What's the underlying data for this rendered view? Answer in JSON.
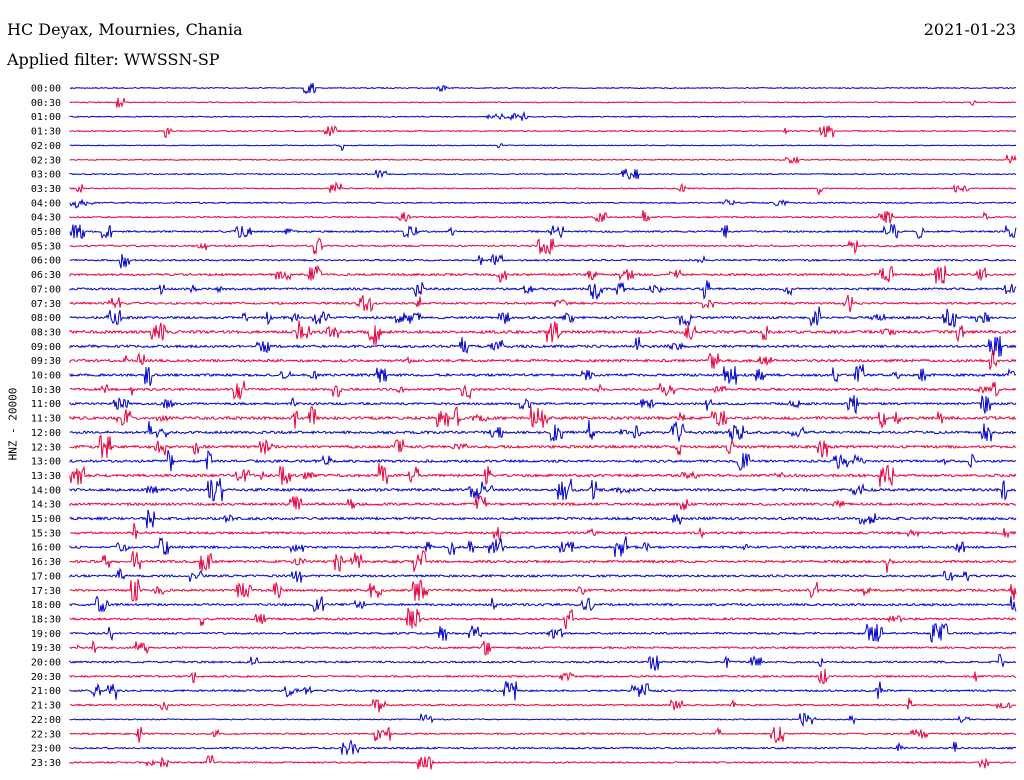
{
  "header": {
    "station": "HC Deyax, Mournies, Chania",
    "date": "2021-01-23",
    "filter_label": "Applied filter: WWSSN-SP"
  },
  "channel_label": "HNZ - 20000",
  "colors": {
    "blue_trace": "#0000cc",
    "red_trace": "#e8003c",
    "text": "#000000",
    "background": "#ffffff"
  },
  "chart_data": {
    "type": "line",
    "title": "",
    "ylabel": "HNZ - 20000",
    "xlabel": "",
    "line_interval_minutes": 30,
    "trace_colors_alternate": [
      "blue",
      "red"
    ],
    "rows": [
      {
        "time": "00:00",
        "activity": 0.12
      },
      {
        "time": "00:30",
        "activity": 0.12
      },
      {
        "time": "01:00",
        "activity": 0.12
      },
      {
        "time": "01:30",
        "activity": 0.15
      },
      {
        "time": "02:00",
        "activity": 0.08
      },
      {
        "time": "02:30",
        "activity": 0.12
      },
      {
        "time": "03:00",
        "activity": 0.15
      },
      {
        "time": "03:30",
        "activity": 0.18
      },
      {
        "time": "04:00",
        "activity": 0.2
      },
      {
        "time": "04:30",
        "activity": 0.25
      },
      {
        "time": "05:00",
        "activity": 0.35
      },
      {
        "time": "05:30",
        "activity": 0.35
      },
      {
        "time": "06:00",
        "activity": 0.35
      },
      {
        "time": "06:30",
        "activity": 0.5
      },
      {
        "time": "07:00",
        "activity": 0.5
      },
      {
        "time": "07:30",
        "activity": 0.45
      },
      {
        "time": "08:00",
        "activity": 0.55
      },
      {
        "time": "08:30",
        "activity": 0.75
      },
      {
        "time": "09:00",
        "activity": 0.6
      },
      {
        "time": "09:30",
        "activity": 0.65
      },
      {
        "time": "10:00",
        "activity": 0.6
      },
      {
        "time": "10:30",
        "activity": 0.55
      },
      {
        "time": "11:00",
        "activity": 0.5
      },
      {
        "time": "11:30",
        "activity": 0.75
      },
      {
        "time": "12:00",
        "activity": 0.65
      },
      {
        "time": "12:30",
        "activity": 0.7
      },
      {
        "time": "13:00",
        "activity": 0.6
      },
      {
        "time": "13:30",
        "activity": 0.65
      },
      {
        "time": "14:00",
        "activity": 0.7
      },
      {
        "time": "14:30",
        "activity": 0.6
      },
      {
        "time": "15:00",
        "activity": 0.65
      },
      {
        "time": "15:30",
        "activity": 0.55
      },
      {
        "time": "16:00",
        "activity": 0.55
      },
      {
        "time": "16:30",
        "activity": 0.6
      },
      {
        "time": "17:00",
        "activity": 0.5
      },
      {
        "time": "17:30",
        "activity": 0.55
      },
      {
        "time": "18:00",
        "activity": 0.55
      },
      {
        "time": "18:30",
        "activity": 0.5
      },
      {
        "time": "19:00",
        "activity": 0.45
      },
      {
        "time": "19:30",
        "activity": 0.4
      },
      {
        "time": "20:00",
        "activity": 0.4
      },
      {
        "time": "20:30",
        "activity": 0.35
      },
      {
        "time": "21:00",
        "activity": 0.4
      },
      {
        "time": "21:30",
        "activity": 0.3
      },
      {
        "time": "22:00",
        "activity": 0.15
      },
      {
        "time": "22:30",
        "activity": 0.3
      },
      {
        "time": "23:00",
        "activity": 0.35
      },
      {
        "time": "23:30",
        "activity": 0.3
      }
    ]
  }
}
